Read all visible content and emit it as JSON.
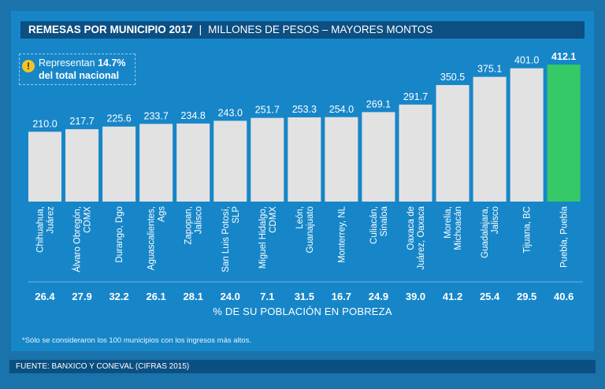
{
  "title": {
    "main": "REMESAS POR MUNICIPIO 2017",
    "separator": "|",
    "subtitle": "MILLONES DE PESOS – MAYORES MONTOS"
  },
  "note": {
    "icon": "warning-icon",
    "prefix": "Representan ",
    "highlight": "14.7%",
    "line2": "del total nacional"
  },
  "poverty_label": "% DE SU POBLACIÓN EN POBREZA",
  "disclaimer": "*Sólo se consideraron los 100 municipios con los ingresos más altos.",
  "footer": "FUENTE: BANXICO Y CONEVAL (CIFRAS 2015)",
  "colors": {
    "bar": "#e2e2e2",
    "highlight_bar": "#35c968",
    "background": "#1786c8",
    "title_bar": "#0c4f82"
  },
  "chart_data": {
    "type": "bar",
    "title": "REMESAS POR MUNICIPIO 2017",
    "subtitle": "MILLONES DE PESOS – MAYORES MONTOS",
    "ylabel": "Millones de pesos",
    "ylim": [
      0,
      412.1
    ],
    "categories": [
      [
        "Chihuahua,",
        "Juárez"
      ],
      [
        "Álvaro Obregón,",
        "CDMX"
      ],
      [
        "Durango, Dgo"
      ],
      [
        "Aguascalientes,",
        "Ags"
      ],
      [
        "Zapopan,",
        "Jalisco"
      ],
      [
        "San Luis Potosí,",
        "SLP"
      ],
      [
        "Miguel Hidalgo,",
        "CDMX"
      ],
      [
        "León,",
        "Guanajuato"
      ],
      [
        "Monterrey, NL"
      ],
      [
        "Culiacán,",
        "Sinaloa"
      ],
      [
        "Oaxaca de",
        "Juárez, Oaxaca"
      ],
      [
        "Morelia,",
        "Michoacán"
      ],
      [
        "Guadalajara,",
        "Jalisco"
      ],
      [
        "Tijuana, BC"
      ],
      [
        "Puebla, Puebla"
      ]
    ],
    "values": [
      210.0,
      217.7,
      225.6,
      233.7,
      234.8,
      243.0,
      251.7,
      253.3,
      254.0,
      269.1,
      291.7,
      350.5,
      375.1,
      401.0,
      412.1
    ],
    "value_labels": [
      "210.0",
      "217.7",
      "225.6",
      "233.7",
      "234.8",
      "243.0",
      "251.7",
      "253.3",
      "254.0",
      "269.1",
      "291.7",
      "350.5",
      "375.1",
      "401.0",
      "412.1"
    ],
    "highlight_index": 14,
    "poverty_pct": [
      "26.4",
      "27.9",
      "32.2",
      "26.1",
      "28.1",
      "24.0",
      "7.1",
      "31.5",
      "16.7",
      "24.9",
      "39.0",
      "41.2",
      "25.4",
      "29.5",
      "40.6"
    ],
    "poverty_label": "% DE SU POBLACIÓN EN POBREZA"
  }
}
